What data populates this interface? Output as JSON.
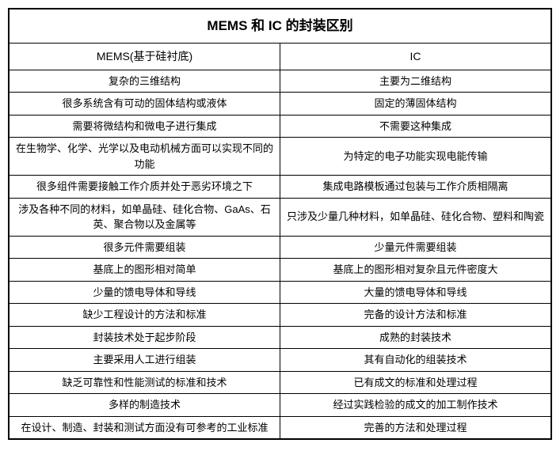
{
  "table": {
    "title": "MEMS 和 IC 的封装区别",
    "headers": {
      "left": "MEMS(基于硅衬底)",
      "right": "IC"
    },
    "rows": [
      {
        "left": "复杂的三维结构",
        "right": "主要为二维结构"
      },
      {
        "left": "很多系统含有可动的固体结构或液体",
        "right": "固定的薄固体结构"
      },
      {
        "left": "需要将微结构和微电子进行集成",
        "right": "不需要这种集成"
      },
      {
        "left": "在生物学、化学、光学以及电动机械方面可以实现不同的功能",
        "right": "为特定的电子功能实现电能传输"
      },
      {
        "left": "很多组件需要接触工作介质并处于恶劣环境之下",
        "right": "集成电路模板通过包装与工作介质相隔离"
      },
      {
        "left": "涉及各种不同的材料，如单晶硅、硅化合物、GaAs、石英、聚合物以及金属等",
        "right": "只涉及少量几种材料，如单晶硅、硅化合物、塑料和陶瓷"
      },
      {
        "left": "很多元件需要组装",
        "right": "少量元件需要组装"
      },
      {
        "left": "基底上的图形相对简单",
        "right": "基底上的图形相对复杂且元件密度大"
      },
      {
        "left": "少量的馈电导体和导线",
        "right": "大量的馈电导体和导线"
      },
      {
        "left": "缺少工程设计的方法和标准",
        "right": "完备的设计方法和标准"
      },
      {
        "left": "封装技术处于起步阶段",
        "right": "成熟的封装技术"
      },
      {
        "left": "主要采用人工进行组装",
        "right": "其有自动化的组装技术"
      },
      {
        "left": "缺乏可靠性和性能测试的标准和技术",
        "right": "已有成文的标准和处理过程"
      },
      {
        "left": "多样的制造技术",
        "right": "经过实践检验的成文的加工制作技术"
      },
      {
        "left": "在设计、制造、封装和测试方面没有可参考的工业标准",
        "right": "完善的方法和处理过程"
      }
    ],
    "styles": {
      "border_color": "#000000",
      "background_color": "#ffffff",
      "text_color": "#000000",
      "title_fontsize": 17,
      "header_fontsize": 14,
      "cell_fontsize": 13,
      "outer_border_width": 2,
      "inner_border_width": 1
    }
  }
}
